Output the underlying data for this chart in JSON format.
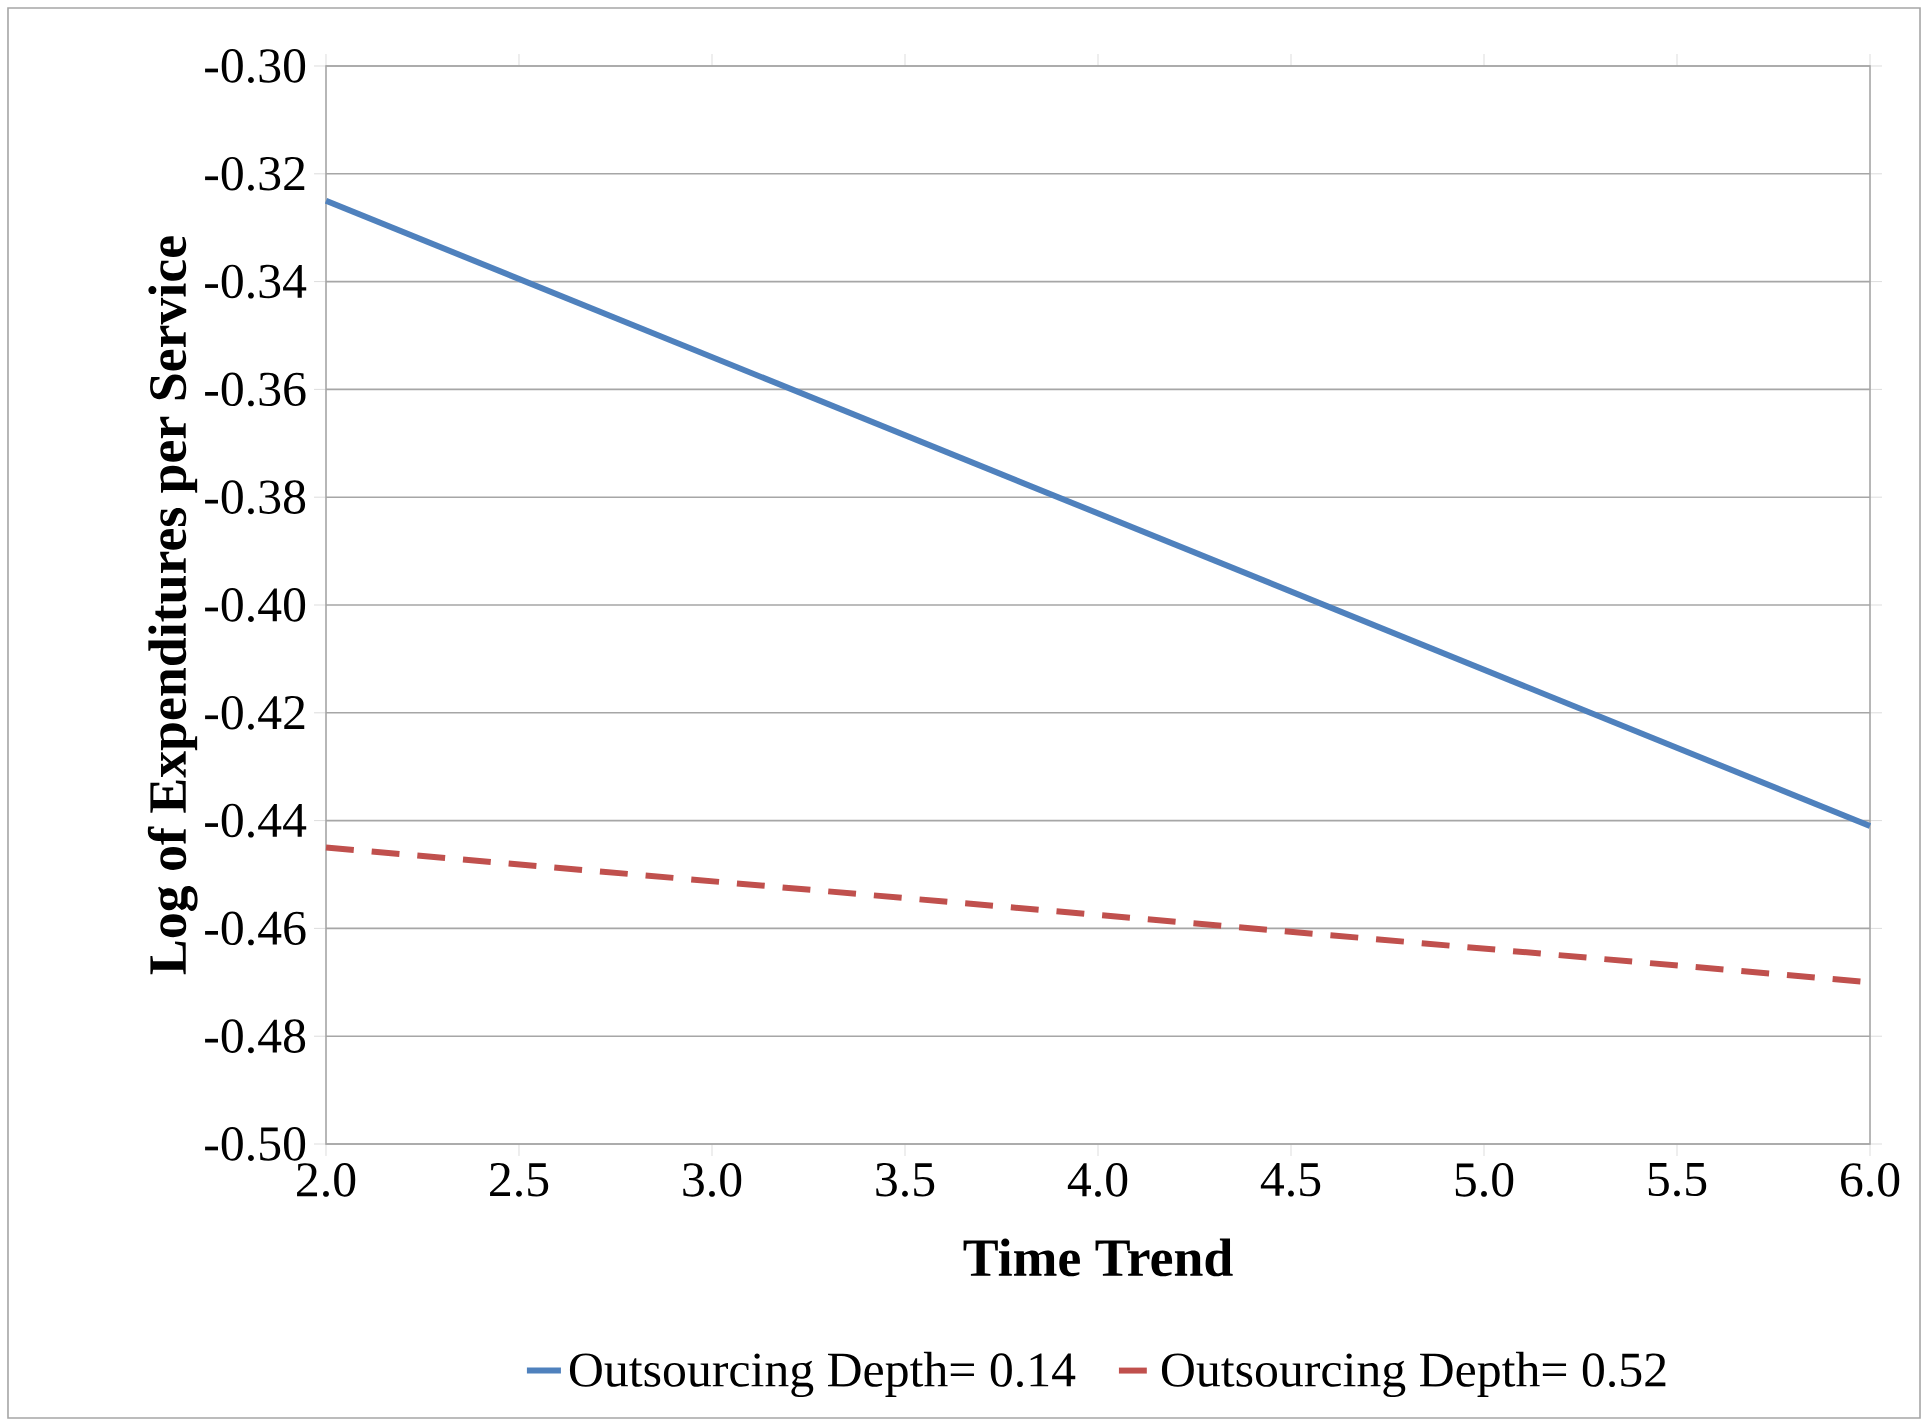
{
  "chart_data": {
    "type": "line",
    "xlabel": "Time Trend",
    "ylabel": "Log of Expenditures per Service",
    "series": [
      {
        "name": "Outsourcing Depth= 0.14",
        "color": "#4f81bd",
        "line_style": "solid",
        "values": [
          -0.325,
          -0.441
        ]
      },
      {
        "name": "Outsourcing Depth= 0.52",
        "color": "#c0504d",
        "line_style": "dashed",
        "values": [
          -0.445,
          -0.47
        ]
      }
    ],
    "x": [
      2.0,
      6.0
    ],
    "xlim": [
      2.0,
      6.0
    ],
    "ylim": [
      -0.5,
      -0.3
    ],
    "xticks": [
      {
        "value": 2.0,
        "label": "2.0"
      },
      {
        "value": 2.5,
        "label": "2.5"
      },
      {
        "value": 3.0,
        "label": "3.0"
      },
      {
        "value": 3.5,
        "label": "3.5"
      },
      {
        "value": 4.0,
        "label": "4.0"
      },
      {
        "value": 4.5,
        "label": "4.5"
      },
      {
        "value": 5.0,
        "label": "5.0"
      },
      {
        "value": 5.5,
        "label": "5.5"
      },
      {
        "value": 6.0,
        "label": "6.0"
      }
    ],
    "yticks": [
      {
        "value": -0.5,
        "label": "-0.50"
      },
      {
        "value": -0.48,
        "label": "-0.48"
      },
      {
        "value": -0.46,
        "label": "-0.46"
      },
      {
        "value": -0.44,
        "label": "-0.44"
      },
      {
        "value": -0.42,
        "label": "-0.42"
      },
      {
        "value": -0.4,
        "label": "-0.40"
      },
      {
        "value": -0.38,
        "label": "-0.38"
      },
      {
        "value": -0.36,
        "label": "-0.36"
      },
      {
        "value": -0.34,
        "label": "-0.34"
      },
      {
        "value": -0.32,
        "label": "-0.32"
      },
      {
        "value": -0.3,
        "label": "-0.30"
      }
    ],
    "grid": "y",
    "legend": "bottom",
    "marker": "none"
  }
}
